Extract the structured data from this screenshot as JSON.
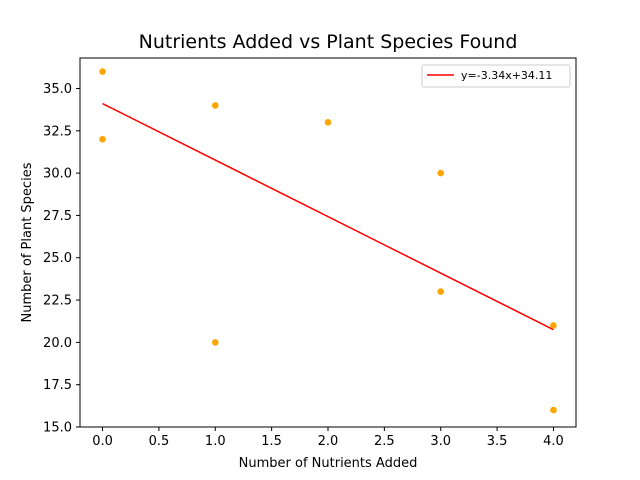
{
  "chart_data": {
    "type": "scatter",
    "title": "Nutrients Added vs Plant Species Found",
    "xlabel": "Number of Nutrients Added",
    "ylabel": "Number of Plant Species",
    "xlim": [
      -0.2,
      4.2
    ],
    "ylim": [
      15.0,
      36.8
    ],
    "xticks": [
      0.0,
      0.5,
      1.0,
      1.5,
      2.0,
      2.5,
      3.0,
      3.5,
      4.0
    ],
    "xtick_labels": [
      "0.0",
      "0.5",
      "1.0",
      "1.5",
      "2.0",
      "2.5",
      "3.0",
      "3.5",
      "4.0"
    ],
    "yticks": [
      15.0,
      17.5,
      20.0,
      22.5,
      25.0,
      27.5,
      30.0,
      32.5,
      35.0
    ],
    "ytick_labels": [
      "15.0",
      "17.5",
      "20.0",
      "22.5",
      "25.0",
      "27.5",
      "30.0",
      "32.5",
      "35.0"
    ],
    "grid": false,
    "legend_position": "top-right",
    "points": {
      "x": [
        0,
        0,
        1,
        1,
        2,
        3,
        3,
        4,
        4
      ],
      "y": [
        36,
        32,
        34,
        20,
        33,
        30,
        23,
        21,
        16
      ],
      "color": "#ffa500"
    },
    "fit_line": {
      "label": "y=-3.34x+34.11",
      "slope": -3.34,
      "intercept": 34.11,
      "x_range": [
        0,
        4
      ],
      "color": "#ff0000"
    }
  }
}
